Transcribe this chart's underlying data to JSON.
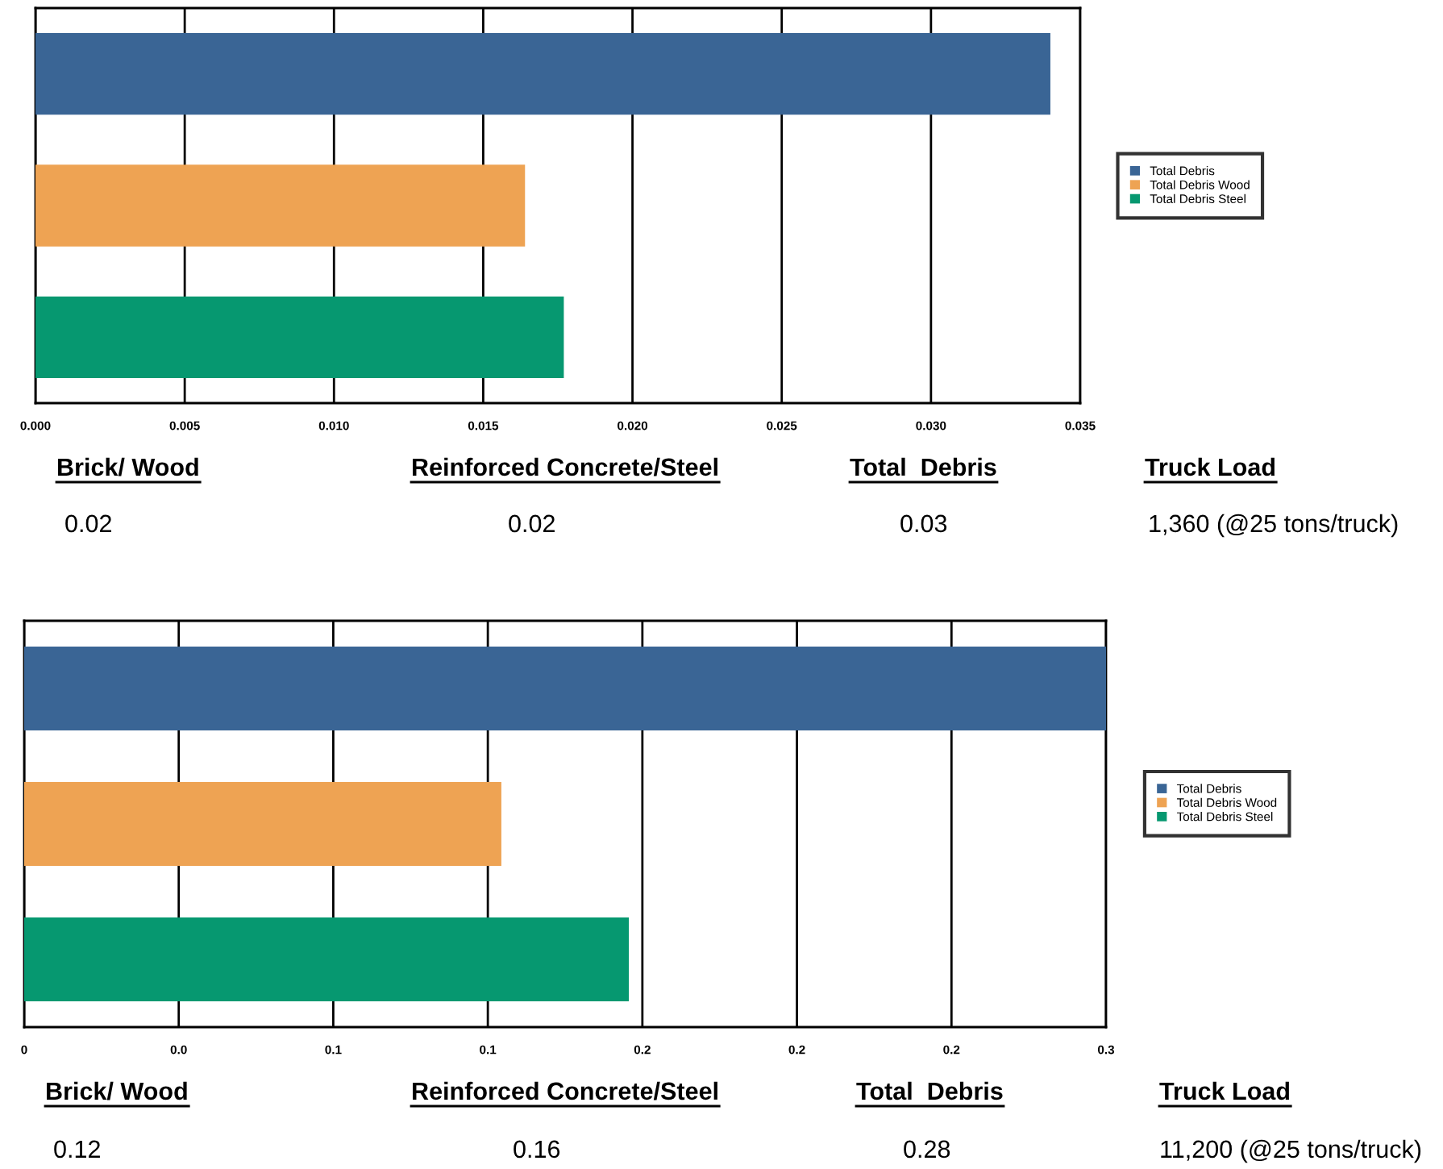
{
  "chart_data": [
    {
      "type": "bar",
      "orientation": "horizontal",
      "categories": [
        null,
        null,
        null
      ],
      "series": [
        {
          "name": "Total Debris",
          "color": "#3a6595",
          "values": [
            0.034,
            null,
            null
          ]
        },
        {
          "name": "Total Debris Wood",
          "color": "#eea353",
          "values": [
            null,
            0.0164,
            null
          ]
        },
        {
          "name": "Total Debris Steel",
          "color": "#069870",
          "values": [
            null,
            null,
            0.0177
          ]
        }
      ],
      "xlim": [
        0,
        0.035
      ],
      "xticks": [
        {
          "value": 0,
          "label": "0.000"
        },
        {
          "value": 0.005,
          "label": "0.005"
        },
        {
          "value": 0.01,
          "label": "0.010"
        },
        {
          "value": 0.015,
          "label": "0.015"
        },
        {
          "value": 0.02,
          "label": "0.020"
        },
        {
          "value": 0.025,
          "label": "0.025"
        },
        {
          "value": 0.03,
          "label": "0.030"
        },
        {
          "value": 0.035,
          "label": "0.035"
        }
      ],
      "grid": "x",
      "legend": "right",
      "annotations": [
        "Brick/ Wood",
        "Reinforced Concrete/Steel",
        "Total  Debris",
        "Truck Load",
        "0.02",
        "0.02",
        "0.03",
        "1,360 (@25 tons/truck)"
      ]
    },
    {
      "type": "bar",
      "orientation": "horizontal",
      "categories": [
        null,
        null,
        null
      ],
      "series": [
        {
          "name": "Total Debris",
          "color": "#3a6595",
          "values": [
            0.28,
            null,
            null
          ]
        },
        {
          "name": "Total Debris Wood",
          "color": "#eea353",
          "values": [
            null,
            0.1235,
            null
          ]
        },
        {
          "name": "Total Debris Steel",
          "color": "#069870",
          "values": [
            null,
            null,
            0.1565
          ]
        }
      ],
      "xlim": [
        0,
        0.28
      ],
      "xticks": [
        {
          "value": 0,
          "label": "0"
        },
        {
          "value": 0.04,
          "label": "0.0"
        },
        {
          "value": 0.08,
          "label": "0.1"
        },
        {
          "value": 0.12,
          "label": "0.1"
        },
        {
          "value": 0.16,
          "label": "0.2"
        },
        {
          "value": 0.2,
          "label": "0.2"
        },
        {
          "value": 0.24,
          "label": "0.2"
        },
        {
          "value": 0.28,
          "label": "0.3"
        }
      ],
      "grid": "x",
      "legend": "right",
      "annotations": [
        "Brick/ Wood",
        "Reinforced Concrete/Steel",
        "Total  Debris",
        "Truck Load",
        "0.12",
        "0.16",
        "0.28",
        "11,200 (@25 tons/truck)"
      ]
    }
  ]
}
